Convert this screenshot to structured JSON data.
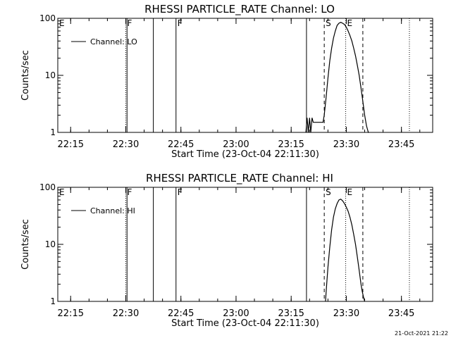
{
  "footer_timestamp": "21-Oct-2021 21:22",
  "chart_data": [
    {
      "type": "line",
      "title": "RHESSI PARTICLE_RATE Channel: LO",
      "xlabel": "Start Time (23-Oct-04 22:11:30)",
      "ylabel": "Counts/sec",
      "y_scale": "log",
      "ylim": [
        1,
        100
      ],
      "yticks": [
        "1",
        "10",
        "100"
      ],
      "xlim": [
        "22:11:30",
        "23:53:30"
      ],
      "xticks": [
        "22:15",
        "22:30",
        "22:45",
        "23:00",
        "23:15",
        "23:30",
        "23:45"
      ],
      "legend": {
        "entries": [
          "Channel: LO"
        ],
        "placement": "top-left"
      },
      "markers": [
        {
          "time": "22:11:30",
          "label": "E",
          "style": "none"
        },
        {
          "time": "22:30:00",
          "label": "F",
          "style": "dotted"
        },
        {
          "time": "22:30:20",
          "label": "",
          "style": "solid"
        },
        {
          "time": "22:37:30",
          "label": "",
          "style": "solid"
        },
        {
          "time": "22:43:40",
          "label": "F",
          "style": "solid"
        },
        {
          "time": "23:19:10",
          "label": "",
          "style": "solid"
        },
        {
          "time": "23:24:00",
          "label": "S",
          "style": "dashed"
        },
        {
          "time": "23:29:50",
          "label": "E",
          "style": "dotted"
        },
        {
          "time": "23:34:30",
          "label": "",
          "style": "dashed"
        },
        {
          "time": "23:47:10",
          "label": "",
          "style": "dotted"
        }
      ],
      "series": [
        {
          "name": "Channel: LO",
          "x": [
            "23:19:00",
            "23:19:20",
            "23:19:40",
            "23:20:00",
            "23:20:20",
            "23:20:40",
            "23:21:00",
            "23:21:20",
            "23:21:40",
            "23:22:20",
            "23:23:00",
            "23:23:40",
            "23:24:00",
            "23:24:30",
            "23:25:00",
            "23:25:30",
            "23:26:00",
            "23:26:30",
            "23:27:00",
            "23:27:30",
            "23:28:00",
            "23:28:30",
            "23:29:00",
            "23:29:30",
            "23:30:00",
            "23:30:30",
            "23:31:00",
            "23:31:30",
            "23:32:00",
            "23:32:30",
            "23:33:00",
            "23:33:30",
            "23:34:00",
            "23:34:30",
            "23:35:00",
            "23:35:30",
            "23:36:00",
            "23:36:10"
          ],
          "values": [
            1,
            1.8,
            1,
            1.8,
            1,
            1.8,
            1.5,
            1.5,
            1.5,
            1.5,
            1.5,
            1.5,
            2,
            4,
            9,
            18,
            30,
            45,
            60,
            75,
            82,
            85,
            82,
            78,
            70,
            60,
            50,
            40,
            30,
            22,
            15,
            10,
            6,
            3.5,
            2,
            1.3,
            1,
            1
          ]
        }
      ]
    },
    {
      "type": "line",
      "title": "RHESSI PARTICLE_RATE Channel: HI",
      "xlabel": "Start Time (23-Oct-04 22:11:30)",
      "ylabel": "Counts/sec",
      "y_scale": "log",
      "ylim": [
        1,
        100
      ],
      "yticks": [
        "1",
        "10",
        "100"
      ],
      "xlim": [
        "22:11:30",
        "23:53:30"
      ],
      "xticks": [
        "22:15",
        "22:30",
        "22:45",
        "23:00",
        "23:15",
        "23:30",
        "23:45"
      ],
      "legend": {
        "entries": [
          "Channel: HI"
        ],
        "placement": "top-left"
      },
      "markers": [
        {
          "time": "22:11:30",
          "label": "E",
          "style": "none"
        },
        {
          "time": "22:30:00",
          "label": "F",
          "style": "dotted"
        },
        {
          "time": "22:30:20",
          "label": "",
          "style": "solid"
        },
        {
          "time": "22:37:30",
          "label": "",
          "style": "solid"
        },
        {
          "time": "22:43:40",
          "label": "F",
          "style": "solid"
        },
        {
          "time": "23:19:10",
          "label": "",
          "style": "solid"
        },
        {
          "time": "23:24:00",
          "label": "S",
          "style": "dashed"
        },
        {
          "time": "23:29:50",
          "label": "E",
          "style": "dotted"
        },
        {
          "time": "23:34:30",
          "label": "",
          "style": "dashed"
        },
        {
          "time": "23:47:10",
          "label": "",
          "style": "dotted"
        }
      ],
      "series": [
        {
          "name": "Channel: HI",
          "x": [
            "23:24:20",
            "23:24:40",
            "23:25:00",
            "23:25:30",
            "23:26:00",
            "23:26:30",
            "23:27:00",
            "23:27:30",
            "23:28:00",
            "23:28:30",
            "23:29:00",
            "23:29:30",
            "23:30:00",
            "23:30:30",
            "23:31:00",
            "23:31:30",
            "23:32:00",
            "23:32:30",
            "23:33:00",
            "23:33:30",
            "23:34:00",
            "23:34:20",
            "23:34:40",
            "23:35:00"
          ],
          "values": [
            1,
            2,
            4,
            9,
            18,
            30,
            42,
            52,
            60,
            62,
            58,
            52,
            45,
            38,
            30,
            22,
            15,
            10,
            6,
            3.5,
            2,
            1.5,
            1.2,
            1
          ]
        }
      ]
    }
  ]
}
